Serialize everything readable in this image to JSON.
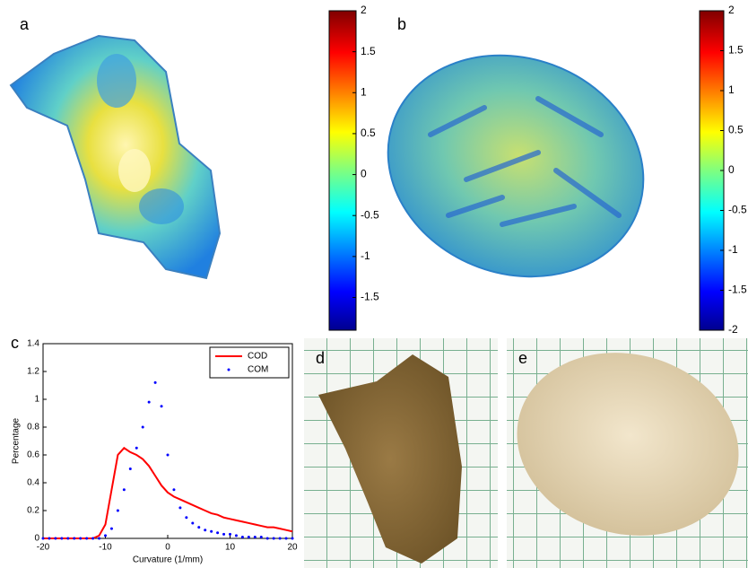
{
  "panel_labels": [
    "a",
    "b",
    "c",
    "d",
    "e"
  ],
  "chart_data": [
    {
      "type": "colorbar",
      "ylim": [
        -1.9,
        2
      ],
      "yticks": [
        2,
        1.5,
        1,
        0.5,
        0,
        -0.5,
        -1,
        -1.5
      ]
    },
    {
      "type": "colorbar",
      "ylim": [
        -2,
        2
      ],
      "yticks": [
        2,
        1.5,
        1,
        0.5,
        0,
        -0.5,
        -1,
        -1.5,
        -2
      ]
    },
    {
      "type": "line",
      "xlabel": "Curvature (1/mm)",
      "ylabel": "Percentage",
      "x": [
        -20,
        -19,
        -18,
        -17,
        -16,
        -15,
        -14,
        -13,
        -12,
        -11,
        -10,
        -9,
        -8,
        -7,
        -6,
        -5,
        -4,
        -3,
        -2,
        -1,
        0,
        1,
        2,
        3,
        4,
        5,
        6,
        7,
        8,
        9,
        10,
        11,
        12,
        13,
        14,
        15,
        16,
        17,
        18,
        19,
        20
      ],
      "series": [
        {
          "name": "COD",
          "color": "#ff0000",
          "style": "line",
          "values": [
            0,
            0,
            0,
            0,
            0,
            0,
            0,
            0,
            0,
            0.02,
            0.1,
            0.35,
            0.6,
            0.65,
            0.62,
            0.6,
            0.57,
            0.52,
            0.45,
            0.38,
            0.33,
            0.3,
            0.28,
            0.26,
            0.24,
            0.22,
            0.2,
            0.18,
            0.17,
            0.15,
            0.14,
            0.13,
            0.12,
            0.11,
            0.1,
            0.09,
            0.08,
            0.08,
            0.07,
            0.06,
            0.05
          ]
        },
        {
          "name": "COM",
          "color": "#0000ff",
          "style": "dots",
          "values": [
            0,
            0,
            0,
            0,
            0,
            0,
            0,
            0,
            0,
            0,
            0.02,
            0.07,
            0.2,
            0.35,
            0.5,
            0.65,
            0.8,
            0.98,
            1.12,
            0.95,
            0.6,
            0.35,
            0.22,
            0.15,
            0.11,
            0.08,
            0.06,
            0.05,
            0.04,
            0.03,
            0.03,
            0.02,
            0.01,
            0.01,
            0.01,
            0.01,
            0,
            0,
            0,
            0,
            0
          ]
        }
      ],
      "xlim": [
        -20,
        20
      ],
      "xticks": [
        -20,
        -10,
        0,
        10,
        20
      ],
      "ylim": [
        0,
        1.4
      ],
      "yticks": [
        0,
        0.2,
        0.4,
        0.6,
        0.8,
        1,
        1.2,
        1.4
      ],
      "legend": "upper-right"
    }
  ]
}
